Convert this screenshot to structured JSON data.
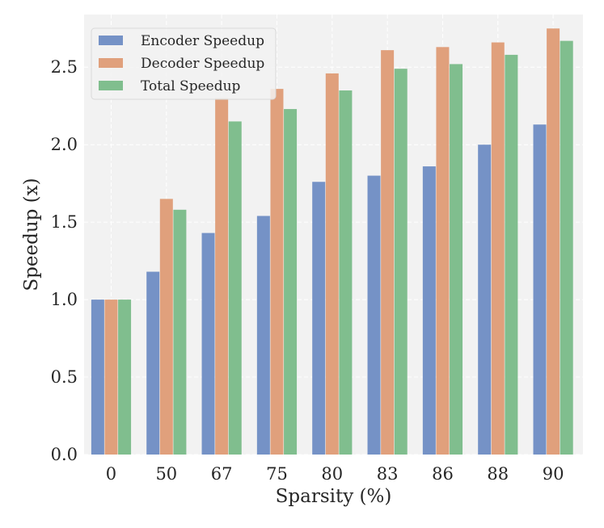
{
  "chart_data": {
    "type": "bar",
    "title": "",
    "xlabel": "Sparsity (%)",
    "ylabel": "Speedup (x)",
    "categories": [
      "0",
      "50",
      "67",
      "75",
      "80",
      "83",
      "86",
      "88",
      "90"
    ],
    "series": [
      {
        "name": "Encoder Speedup",
        "color": "#7592c6",
        "values": [
          1.0,
          1.18,
          1.43,
          1.54,
          1.76,
          1.8,
          1.86,
          2.0,
          2.13
        ]
      },
      {
        "name": "Decoder Speedup",
        "color": "#e0a07c",
        "values": [
          1.0,
          1.65,
          2.3,
          2.36,
          2.46,
          2.61,
          2.63,
          2.66,
          2.75
        ]
      },
      {
        "name": "Total Speedup",
        "color": "#80be8e",
        "values": [
          1.0,
          1.58,
          2.15,
          2.23,
          2.35,
          2.49,
          2.52,
          2.58,
          2.67
        ]
      }
    ],
    "ylim": [
      0,
      2.84
    ],
    "yticks": [
      "0.0",
      "0.5",
      "1.0",
      "1.5",
      "2.0",
      "2.5"
    ],
    "grid": true,
    "legend_position": "top-left",
    "background": "#f2f2f2",
    "grid_color": "#ffffff"
  }
}
